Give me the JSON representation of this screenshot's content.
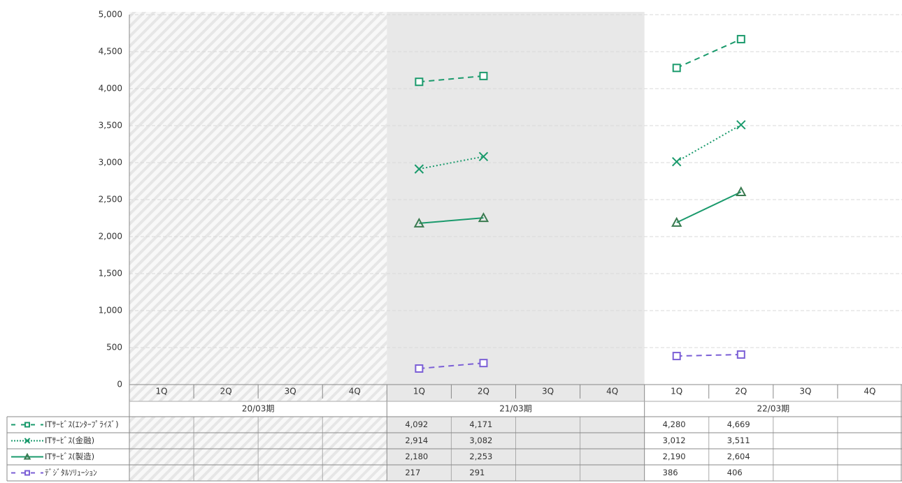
{
  "chart_data": {
    "type": "line",
    "categories": [
      "1Q",
      "2Q",
      "3Q",
      "4Q",
      "1Q",
      "2Q",
      "3Q",
      "4Q",
      "1Q",
      "2Q",
      "3Q",
      "4Q"
    ],
    "groups": [
      {
        "label": "20/03期",
        "background": "hatched"
      },
      {
        "label": "21/03期",
        "background": "#e8e8e8"
      },
      {
        "label": "22/03期",
        "background": "none"
      }
    ],
    "series": [
      {
        "name": "ITｻｰﾋﾞｽ(ｴﾝﾀｰﾌﾟﾗｲｽﾞ)",
        "color": "#1a9a6c",
        "marker_color": "#1a9a6c",
        "dash": "dashed",
        "marker": "square",
        "values": [
          null,
          null,
          null,
          null,
          4092,
          4171,
          null,
          null,
          4280,
          4669,
          null,
          null
        ],
        "value_labels": [
          null,
          null,
          null,
          null,
          "4,092",
          "4,171",
          null,
          null,
          "4,280",
          "4,669",
          null,
          null
        ]
      },
      {
        "name": "ITｻｰﾋﾞｽ(金融)",
        "color": "#1a9a6c",
        "marker_color": "#1a9a6c",
        "dash": "dotted",
        "marker": "x",
        "values": [
          null,
          null,
          null,
          null,
          2914,
          3082,
          null,
          null,
          3012,
          3511,
          null,
          null
        ],
        "value_labels": [
          null,
          null,
          null,
          null,
          "2,914",
          "3,082",
          null,
          null,
          "3,012",
          "3,511",
          null,
          null
        ]
      },
      {
        "name": "ITｻｰﾋﾞｽ(製造)",
        "color": "#1a9a6c",
        "marker_color": "#3a7a50",
        "dash": "solid",
        "marker": "triangle",
        "values": [
          null,
          null,
          null,
          null,
          2180,
          2253,
          null,
          null,
          2190,
          2604,
          null,
          null
        ],
        "value_labels": [
          null,
          null,
          null,
          null,
          "2,180",
          "2,253",
          null,
          null,
          "2,190",
          "2,604",
          null,
          null
        ]
      },
      {
        "name": "ﾃﾞｼﾞﾀﾙｿﾘｭｰｼｮﾝ",
        "color": "#7b5fd6",
        "marker_color": "#7b5fd6",
        "dash": "dashed",
        "marker": "square",
        "values": [
          null,
          null,
          null,
          null,
          217,
          291,
          null,
          null,
          386,
          406,
          null,
          null
        ],
        "value_labels": [
          null,
          null,
          null,
          null,
          "217",
          "291",
          null,
          null,
          "386",
          "406",
          null,
          null
        ]
      }
    ],
    "ylim": [
      0,
      5000
    ],
    "yticks": [
      0,
      500,
      {
        "value": 1000,
        "label": "1,000"
      },
      {
        "value": 1500,
        "label": "1,500"
      },
      {
        "value": 2000,
        "label": "2,000"
      },
      {
        "value": 2500,
        "label": "2,500"
      },
      {
        "value": 3000,
        "label": "3,000"
      },
      {
        "value": 3500,
        "label": "3,500"
      },
      {
        "value": 4000,
        "label": "4,000"
      },
      {
        "value": 4500,
        "label": "4,500"
      },
      {
        "value": 5000,
        "label": "5,000"
      }
    ],
    "grid": true
  }
}
